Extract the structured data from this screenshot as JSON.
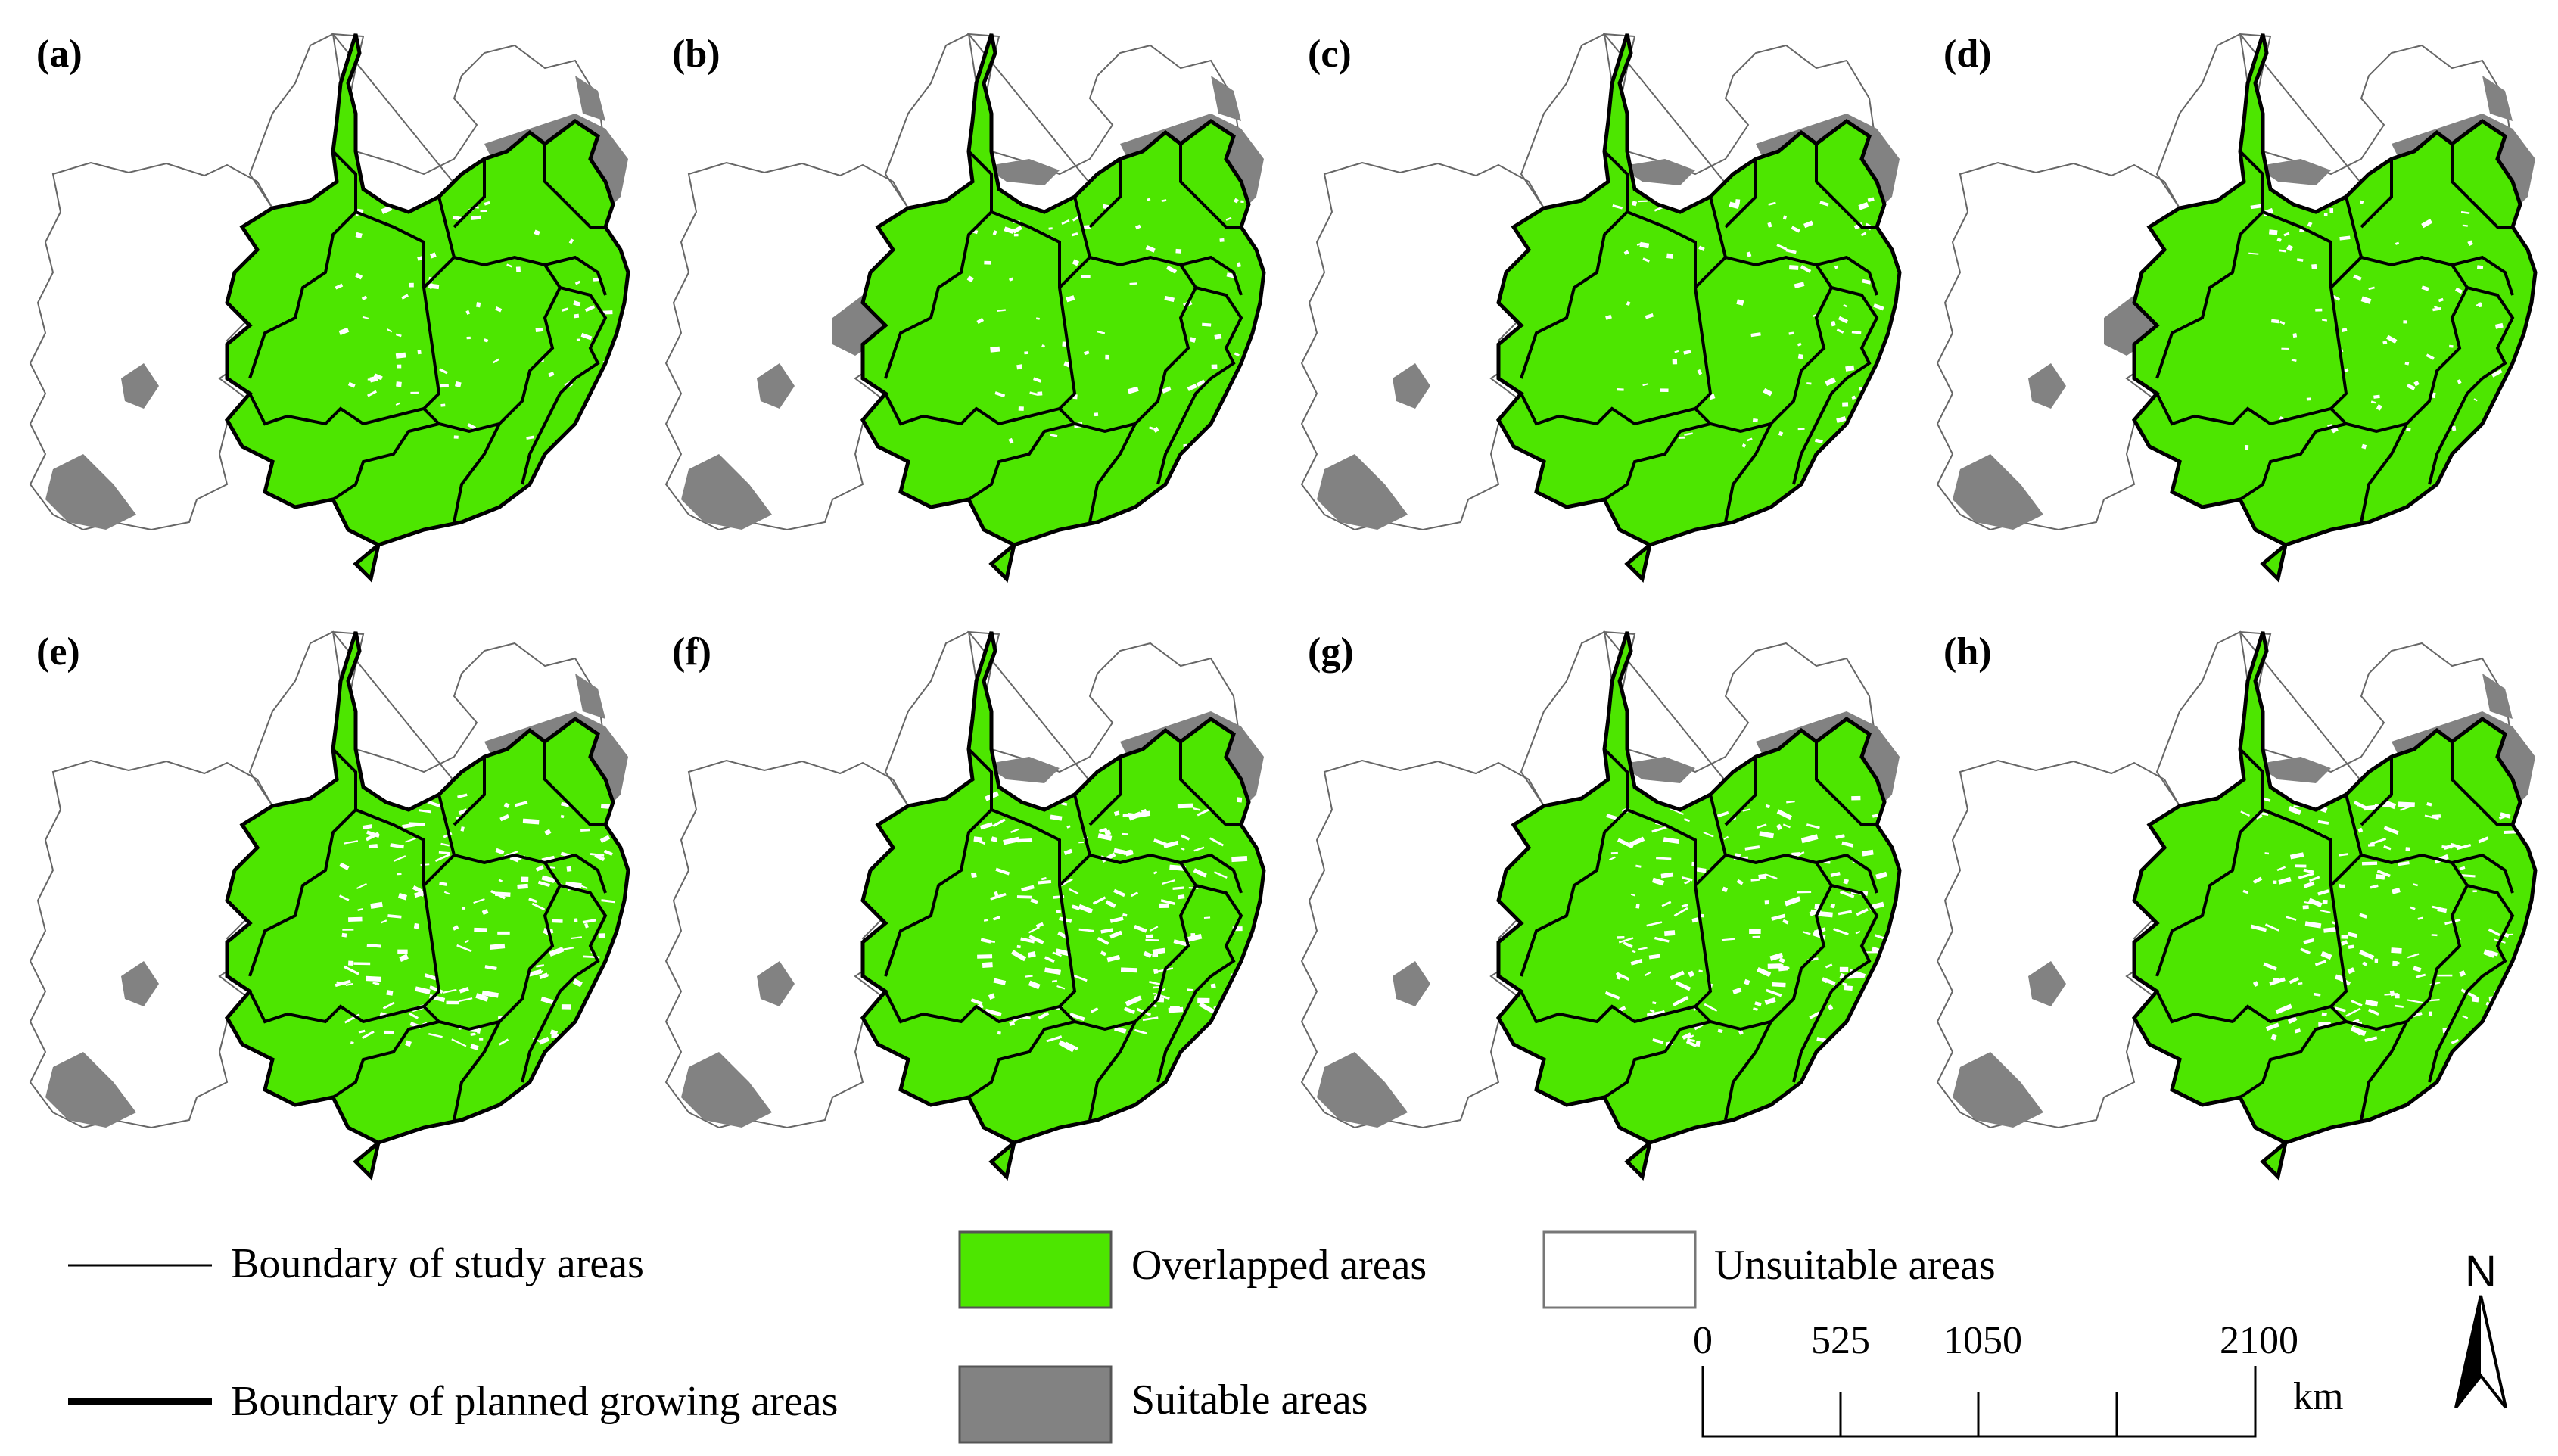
{
  "panels": [
    {
      "label": "(a)",
      "suitable": [
        "sw",
        "west",
        "ne_big",
        "ne_tip"
      ],
      "sparse": false
    },
    {
      "label": "(b)",
      "suitable": [
        "sw",
        "west",
        "west_big",
        "north",
        "ne_big",
        "ne_tip"
      ],
      "sparse": false
    },
    {
      "label": "(c)",
      "suitable": [
        "sw",
        "west",
        "north",
        "ne_big"
      ],
      "sparse": false
    },
    {
      "label": "(d)",
      "suitable": [
        "sw",
        "west",
        "west_big",
        "north",
        "ne_big",
        "ne_tip"
      ],
      "sparse": false
    },
    {
      "label": "(e)",
      "suitable": [
        "sw",
        "west",
        "ne_big",
        "ne_tip"
      ],
      "sparse": true
    },
    {
      "label": "(f)",
      "suitable": [
        "sw",
        "west",
        "north",
        "ne_big"
      ],
      "sparse": true
    },
    {
      "label": "(g)",
      "suitable": [
        "sw",
        "west",
        "north",
        "ne_big"
      ],
      "sparse": true
    },
    {
      "label": "(h)",
      "suitable": [
        "sw",
        "west",
        "north",
        "ne_big",
        "ne_tip"
      ],
      "sparse": true
    }
  ],
  "legend": {
    "study_boundary": "Boundary of study areas",
    "planned_boundary": "Boundary of planned growing areas",
    "overlapped": "Overlapped areas",
    "suitable": "Suitable areas",
    "unsuitable": "Unsuitable areas"
  },
  "scale_bar": {
    "ticks": [
      "0",
      "525",
      "1050",
      "2100"
    ],
    "unit": "km"
  },
  "north_arrow": {
    "label": "N"
  },
  "colors": {
    "overlapped": "#4de600",
    "suitable": "#828282",
    "unsuitable": "#ffffff",
    "boundary": "#000000"
  }
}
